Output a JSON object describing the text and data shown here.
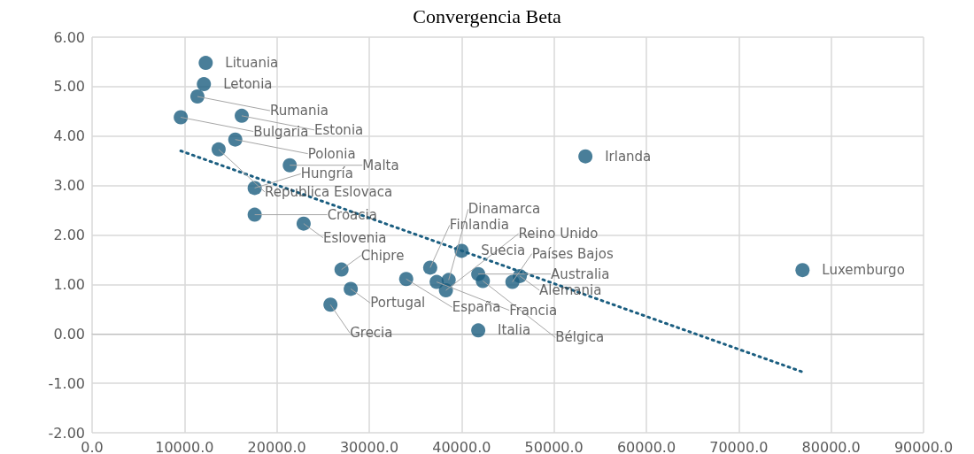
{
  "chart_data": {
    "type": "scatter",
    "title": "Convergencia Beta",
    "xlim": [
      0,
      90000
    ],
    "xticks": [
      {
        "value": 0,
        "label": "0.0"
      },
      {
        "value": 10000,
        "label": "10000.0"
      },
      {
        "value": 20000,
        "label": "20000.0"
      },
      {
        "value": 30000,
        "label": "30000.0"
      },
      {
        "value": 40000,
        "label": "40000.0"
      },
      {
        "value": 50000,
        "label": "50000.0"
      },
      {
        "value": 60000,
        "label": "60000.0"
      },
      {
        "value": 70000,
        "label": "70000.0"
      },
      {
        "value": 80000,
        "label": "80000.0"
      },
      {
        "value": 90000,
        "label": "90000.0"
      }
    ],
    "ylim": [
      -2,
      6
    ],
    "yticks": [
      {
        "value": -2,
        "label": "-2.00"
      },
      {
        "value": -1,
        "label": "-1.00"
      },
      {
        "value": 0,
        "label": "0.00"
      },
      {
        "value": 1,
        "label": "1.00"
      },
      {
        "value": 2,
        "label": "2.00"
      },
      {
        "value": 3,
        "label": "3.00"
      },
      {
        "value": 4,
        "label": "4.00"
      },
      {
        "value": 5,
        "label": "5.00"
      },
      {
        "value": 6,
        "label": "6.00"
      }
    ],
    "grid": true,
    "marker": "circle",
    "series": [
      {
        "color": "#1b5e80",
        "x": [
          12300,
          12100,
          11400,
          9600,
          16200,
          15500,
          13700,
          21400,
          17600,
          17600,
          22900,
          53400,
          76900,
          40000,
          27000,
          28000,
          25800,
          41800,
          36600,
          34000,
          37300,
          38300,
          41800,
          46300,
          45500,
          42300,
          38600
        ],
        "values": [
          5.48,
          5.05,
          4.8,
          4.38,
          4.41,
          3.93,
          3.73,
          3.41,
          2.95,
          2.41,
          2.23,
          3.59,
          1.29,
          1.68,
          1.3,
          0.91,
          0.59,
          0.07,
          1.34,
          1.11,
          1.05,
          0.88,
          1.21,
          1.17,
          1.05,
          1.07,
          1.09
        ]
      },
      {
        "type": "line",
        "color": "#1b5e80",
        "line_style": "dotted",
        "marker": "none",
        "x": [
          9600,
          76900
        ],
        "values": [
          3.7,
          -0.77
        ]
      }
    ],
    "annotations": [
      {
        "text": "Lituania",
        "x": 12300,
        "y": 5.48
      },
      {
        "text": "Letonia",
        "x": 12100,
        "y": 5.05
      },
      {
        "text": "Rumania",
        "x": 11400,
        "y": 4.8
      },
      {
        "text": "Bulgaria",
        "x": 9600,
        "y": 4.38
      },
      {
        "text": "Estonia",
        "x": 16200,
        "y": 4.41
      },
      {
        "text": "Polonia",
        "x": 15500,
        "y": 3.93
      },
      {
        "text": "Republica Eslovaca",
        "x": 13700,
        "y": 3.73
      },
      {
        "text": "Malta",
        "x": 21400,
        "y": 3.41
      },
      {
        "text": "Hungría",
        "x": 17600,
        "y": 2.95
      },
      {
        "text": "Croacia",
        "x": 17600,
        "y": 2.41
      },
      {
        "text": "Eslovenia",
        "x": 22900,
        "y": 2.23
      },
      {
        "text": "Irlanda",
        "x": 53400,
        "y": 3.59
      },
      {
        "text": "Luxemburgo",
        "x": 76900,
        "y": 1.29
      },
      {
        "text": "Suecia",
        "x": 40000,
        "y": 1.68
      },
      {
        "text": "Chipre",
        "x": 27000,
        "y": 1.3
      },
      {
        "text": "Portugal",
        "x": 28000,
        "y": 0.91
      },
      {
        "text": "Grecia",
        "x": 25800,
        "y": 0.59
      },
      {
        "text": "Italia",
        "x": 41800,
        "y": 0.07
      },
      {
        "text": "Finlandia",
        "x": 36600,
        "y": 1.34
      },
      {
        "text": "España",
        "x": 34000,
        "y": 1.11
      },
      {
        "text": "Francia",
        "x": 37300,
        "y": 1.05
      },
      {
        "text": "Reino Unido",
        "x": 38300,
        "y": 0.88
      },
      {
        "text": "Australia",
        "x": 41800,
        "y": 1.21
      },
      {
        "text": "Alemania",
        "x": 46300,
        "y": 1.17
      },
      {
        "text": "Países Bajos",
        "x": 45500,
        "y": 1.05
      },
      {
        "text": "Bélgica",
        "x": 42300,
        "y": 1.07
      },
      {
        "text": "Dinamarca",
        "x": 38600,
        "y": 1.09
      }
    ]
  }
}
